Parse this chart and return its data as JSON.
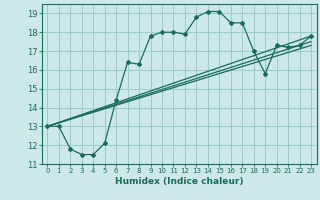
{
  "xlabel": "Humidex (Indice chaleur)",
  "bg_color": "#cce8e8",
  "grid_color": "#99cccc",
  "line_color": "#1a6b5a",
  "marker_color": "#1a6b5a",
  "xlim": [
    -0.5,
    23.5
  ],
  "ylim": [
    11,
    19.5
  ],
  "xticks": [
    0,
    1,
    2,
    3,
    4,
    5,
    6,
    7,
    8,
    9,
    10,
    11,
    12,
    13,
    14,
    15,
    16,
    17,
    18,
    19,
    20,
    21,
    22,
    23
  ],
  "yticks": [
    11,
    12,
    13,
    14,
    15,
    16,
    17,
    18,
    19
  ],
  "line1_x": [
    0,
    1,
    2,
    3,
    4,
    5,
    6,
    7,
    8,
    9,
    10,
    11,
    12,
    13,
    14,
    15,
    16,
    17,
    18,
    19,
    20,
    21,
    22,
    23
  ],
  "line1_y": [
    13.0,
    13.0,
    11.8,
    11.5,
    11.5,
    12.1,
    14.4,
    16.4,
    16.3,
    17.8,
    18.0,
    18.0,
    17.9,
    18.8,
    19.1,
    19.1,
    18.5,
    18.5,
    17.0,
    15.8,
    17.3,
    17.2,
    17.3,
    17.8
  ],
  "line2_x": [
    0,
    23
  ],
  "line2_y": [
    13.0,
    17.8
  ],
  "line3_x": [
    0,
    23
  ],
  "line3_y": [
    13.0,
    17.5
  ],
  "line4_x": [
    0,
    23
  ],
  "line4_y": [
    13.0,
    17.3
  ]
}
